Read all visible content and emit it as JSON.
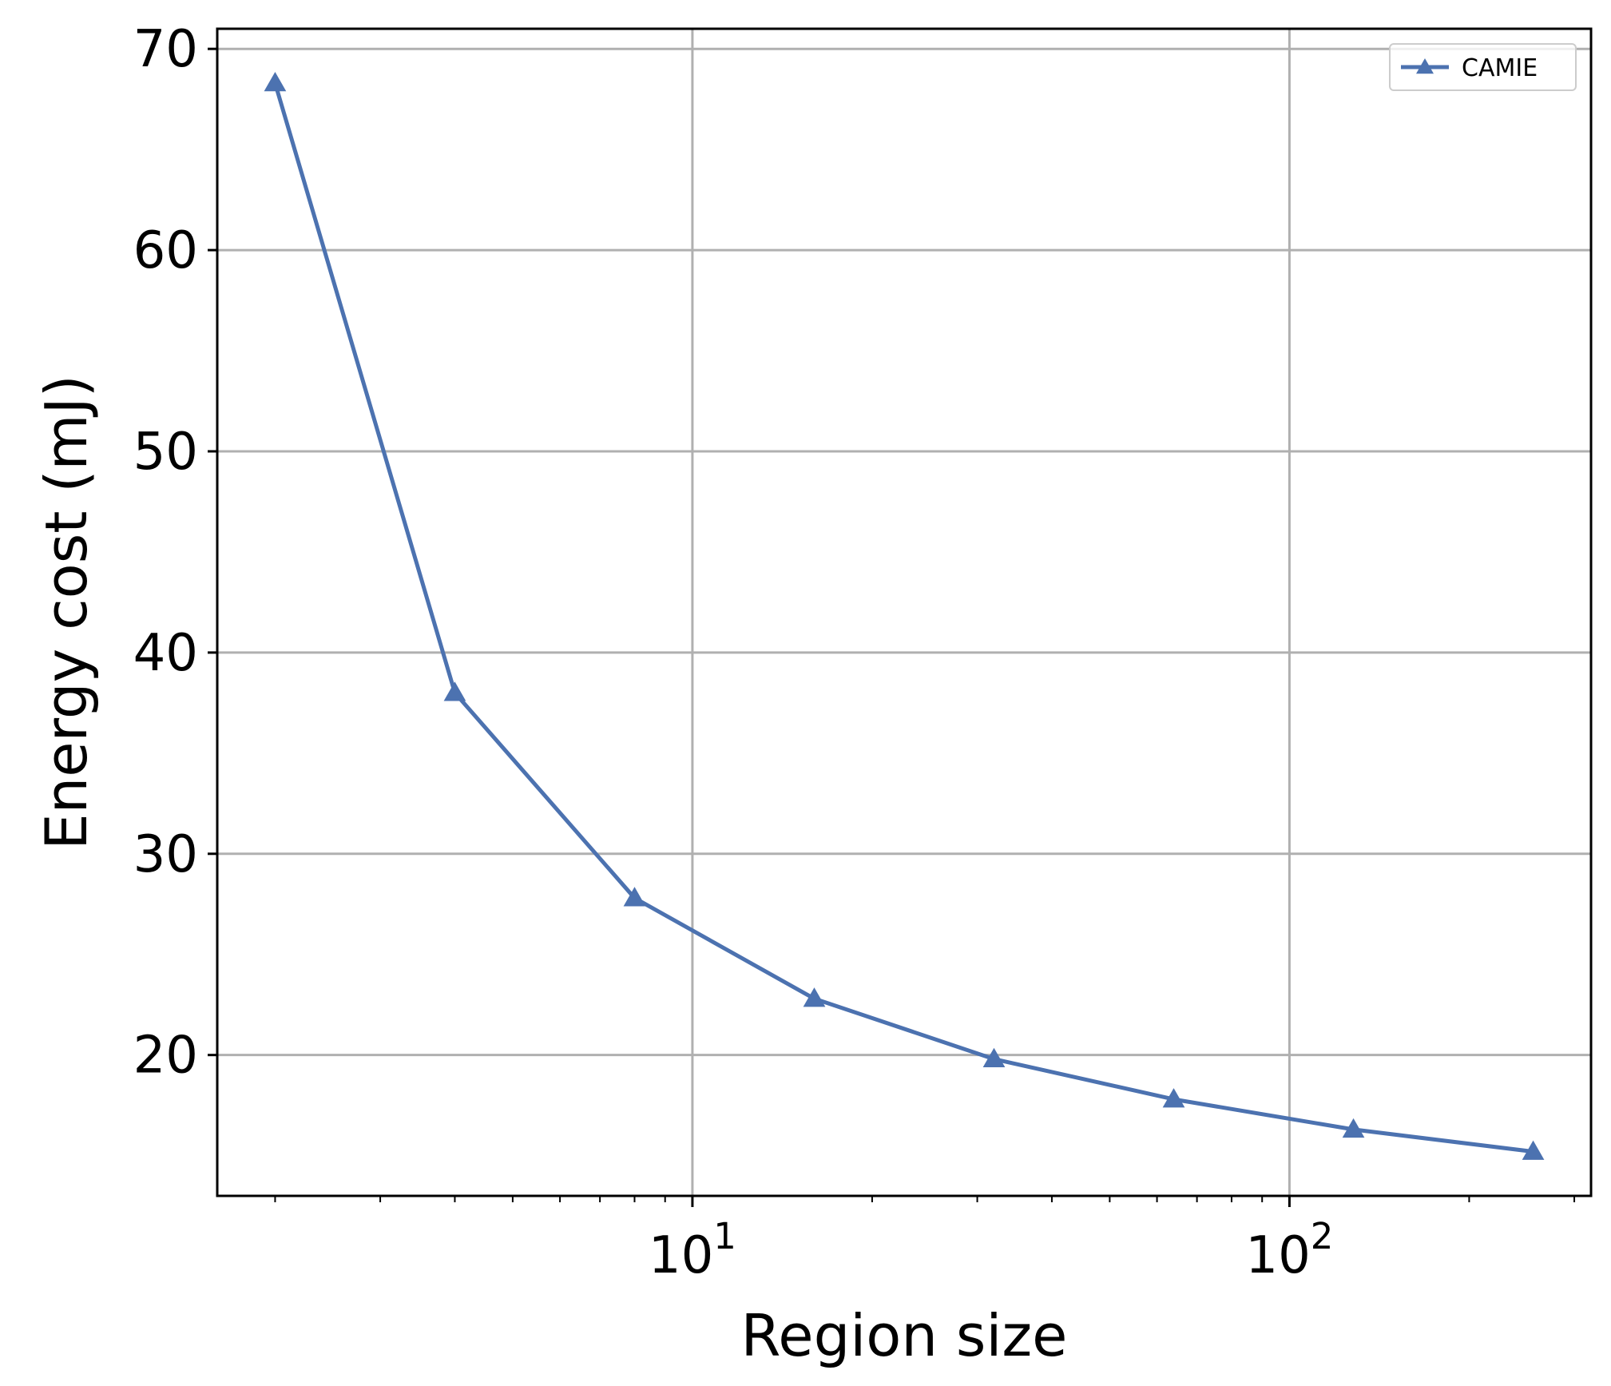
{
  "chart_data": {
    "type": "line",
    "xscale": "log",
    "x": [
      2,
      4,
      8,
      16,
      32,
      64,
      128,
      256
    ],
    "series": [
      {
        "name": "CAMIE",
        "color": "#4c72b0",
        "marker": "triangle",
        "values": [
          68.3,
          38.0,
          27.8,
          22.8,
          19.8,
          17.8,
          16.3,
          15.2
        ]
      }
    ],
    "xlabel": "Region size",
    "ylabel": "Energy cost (mJ)",
    "xlim": [
      1.6,
      320
    ],
    "ylim": [
      13,
      71
    ],
    "xticks": [
      {
        "value": 10,
        "base": "10",
        "exp": "1"
      },
      {
        "value": 100,
        "base": "10",
        "exp": "2"
      }
    ],
    "yticks": [
      20,
      30,
      40,
      50,
      60,
      70
    ],
    "grid": true,
    "legend": "top-right"
  }
}
